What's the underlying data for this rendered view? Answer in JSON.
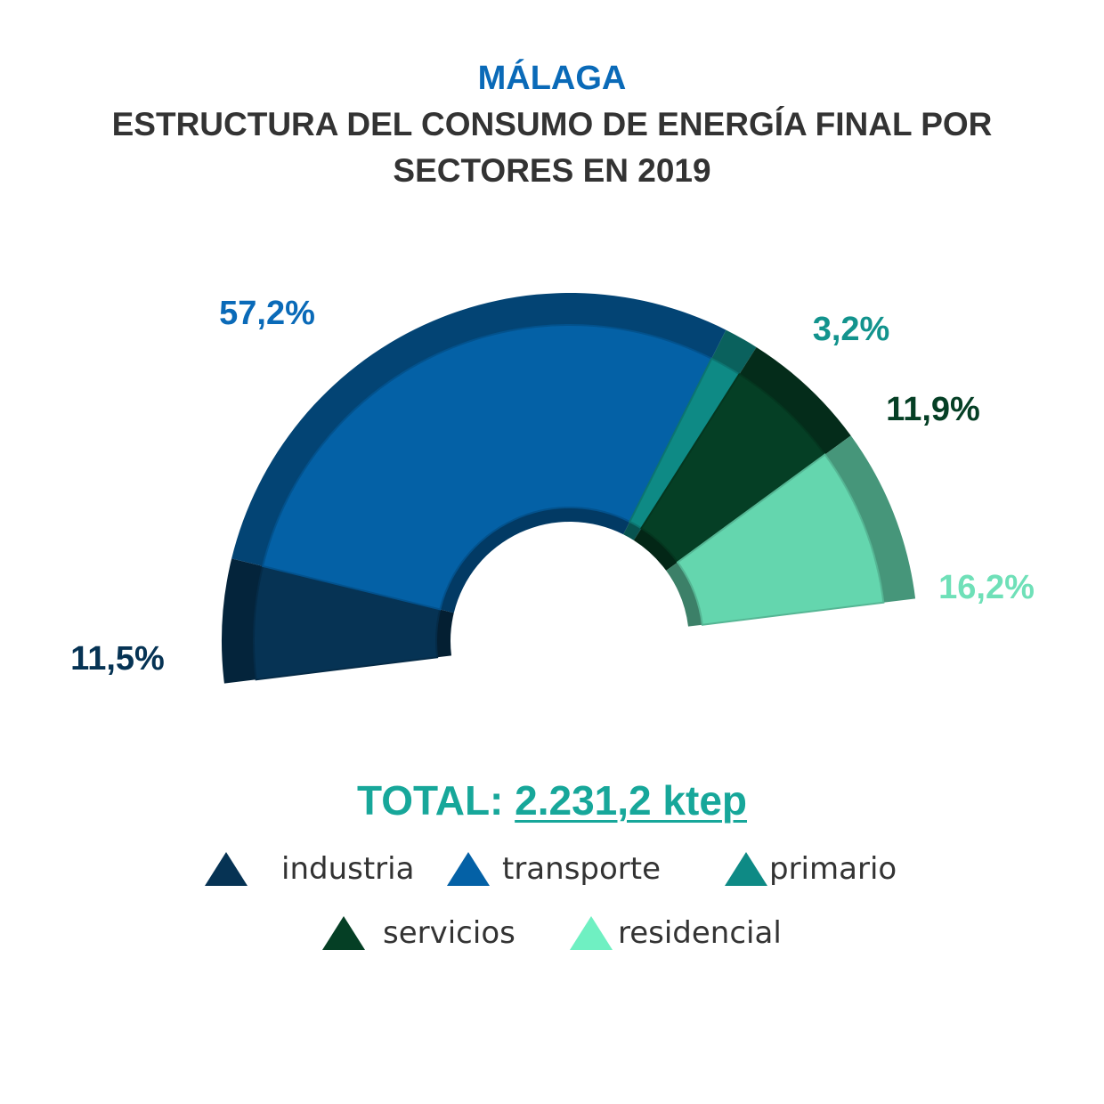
{
  "title": {
    "region": "MÁLAGA",
    "main": "ESTRUCTURA DEL CONSUMO DE ENERGÍA FINAL POR SECTORES EN 2019"
  },
  "total": {
    "label": "TOTAL:",
    "value": "2.231,2 ktep"
  },
  "colors": {
    "industria": "#063354",
    "transporte": "#0461a6",
    "primario": "#0e8a85",
    "servicios": "#053f25",
    "residencial": "#64d6ae",
    "legend_residencial": "#6ff0c2",
    "title_accent": "#0a6ab8",
    "total_text": "#17a79a"
  },
  "chart_data": {
    "type": "pie",
    "variant": "3D half-donut",
    "title": "ESTRUCTURA DEL CONSUMO DE ENERGÍA FINAL POR SECTORES EN 2019",
    "subtitle": "MÁLAGA",
    "categories": [
      "industria",
      "transporte",
      "primario",
      "servicios",
      "residencial"
    ],
    "values": [
      11.5,
      57.2,
      3.2,
      11.9,
      16.2
    ],
    "value_labels": [
      "11,5%",
      "57,2%",
      "3,2%",
      "11,9%",
      "16,2%"
    ],
    "unit": "%",
    "legend_position": "bottom"
  },
  "legend": [
    {
      "label": "industria",
      "key": "industria"
    },
    {
      "label": "transporte",
      "key": "transporte"
    },
    {
      "label": "primario",
      "key": "primario"
    },
    {
      "label": "servicios",
      "key": "servicios"
    },
    {
      "label": "residencial",
      "key": "legend_residencial"
    }
  ]
}
